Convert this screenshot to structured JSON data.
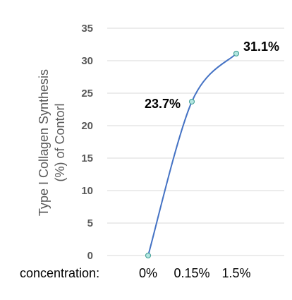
{
  "chart_data": {
    "type": "line",
    "xlabel": "concentration:",
    "ylabel_lines": [
      "Type I Collagen Synthesis",
      "(%) of Contorl"
    ],
    "categories": [
      "0%",
      "0.15%",
      "1.5%"
    ],
    "series": [
      {
        "values": [
          0,
          23.7,
          31.1
        ],
        "data_labels": [
          "",
          "23.7%",
          "31.1%"
        ]
      }
    ],
    "ylim": [
      0,
      35
    ],
    "yticks": [
      0,
      5,
      10,
      15,
      20,
      25,
      30,
      35
    ],
    "grid": true,
    "smooth": true,
    "colors": {
      "line": "#4472c4",
      "marker_fill": "#b4e6e1",
      "marker_stroke": "#3a9a8f",
      "grid": "#d9d9d9"
    }
  }
}
